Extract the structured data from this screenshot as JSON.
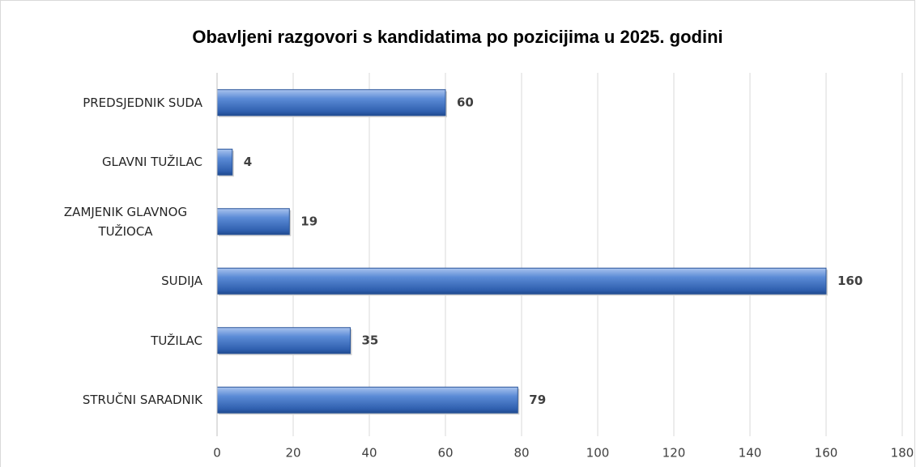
{
  "chart_data": {
    "type": "bar",
    "orientation": "horizontal",
    "title": "Obavljeni razgovori s kandidatima po pozicijima u 2025. godini",
    "categories": [
      "PREDSJEDNIK SUDA",
      "GLAVNI TUŽILAC",
      "ZAMJENIK GLAVNOG TUŽIOCA",
      "SUDIJA",
      "TUŽILAC",
      "STRUČNI SARADNIK"
    ],
    "values": [
      60,
      4,
      19,
      160,
      35,
      79
    ],
    "color": "#3d6fc0",
    "xlim": [
      0,
      180
    ],
    "xticks": [
      0,
      20,
      40,
      60,
      80,
      100,
      120,
      140,
      160,
      180
    ],
    "grid": true
  }
}
